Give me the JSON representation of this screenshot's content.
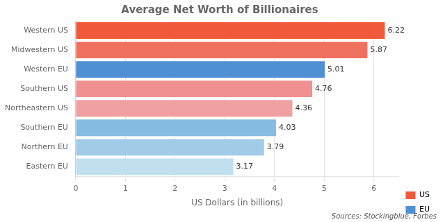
{
  "chart_data": {
    "type": "bar",
    "orientation": "horizontal",
    "title": "Average Net Worth of Billionaires",
    "x_label": "US Dollars (in billions)",
    "source": "Sources: Stockingblue, Forbes",
    "categories": [
      "Western US",
      "Midwestern US",
      "Western EU",
      "Southern US",
      "Northeastern US",
      "Southern EU",
      "Northern EU",
      "Eastern EU"
    ],
    "series": [
      {
        "name": "US",
        "color": "#f05a3a",
        "values": [
          6.22,
          5.87,
          null,
          4.76,
          4.36,
          null,
          null,
          null
        ],
        "colors": [
          "#f05a3a",
          "#f07060",
          null,
          "#f09090",
          "#f0a0a0",
          null,
          null,
          null
        ]
      },
      {
        "name": "EU",
        "color": "#4f8fd4",
        "values": [
          null,
          null,
          5.01,
          null,
          null,
          4.03,
          3.79,
          3.17
        ],
        "colors": [
          null,
          null,
          "#4f8fd4",
          null,
          null,
          "#85bce0",
          "#a0cce8",
          "#c0e0f0"
        ]
      }
    ],
    "xlim": [
      0,
      6.5
    ],
    "xticks": [
      0,
      1,
      2,
      3,
      4,
      5,
      6
    ],
    "grid": "x",
    "legend": "lower right",
    "data_labels": true
  }
}
